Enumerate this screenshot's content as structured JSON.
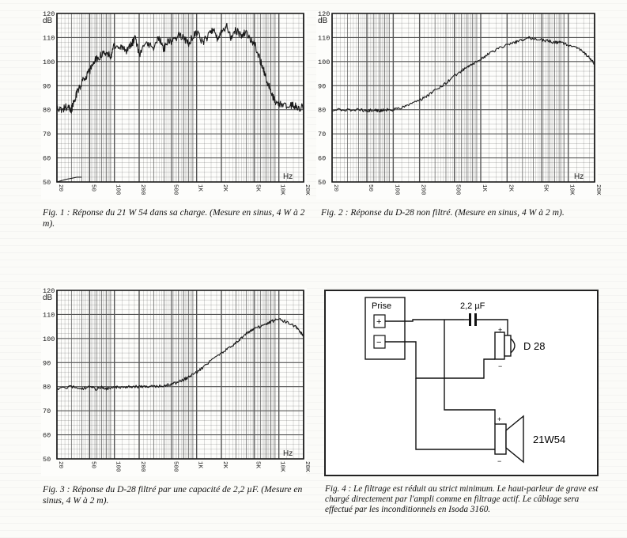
{
  "chart_data": [
    {
      "type": "line",
      "id": "fig1",
      "ylabel": "dB",
      "xlabel": "Hz",
      "xscale": "log",
      "xlim": [
        20,
        20000
      ],
      "ylim": [
        50,
        120
      ],
      "yticks": [
        50,
        60,
        70,
        80,
        90,
        100,
        110,
        120
      ],
      "xtick_labels": [
        {
          "v": 20,
          "t": "20"
        },
        {
          "v": 50,
          "t": "50"
        },
        {
          "v": 100,
          "t": "100"
        },
        {
          "v": 200,
          "t": "200"
        },
        {
          "v": 500,
          "t": "500"
        },
        {
          "v": 1000,
          "t": "1K"
        },
        {
          "v": 2000,
          "t": "2K"
        },
        {
          "v": 5000,
          "t": "5K"
        },
        {
          "v": 10000,
          "t": "10K"
        },
        {
          "v": 20000,
          "t": "20K"
        }
      ],
      "grid": true,
      "series": [
        {
          "x": [
            20,
            23,
            26,
            30,
            32,
            35,
            40,
            45,
            50,
            55,
            60,
            70,
            80,
            90,
            100,
            120,
            140,
            160,
            180,
            200,
            250,
            300,
            350,
            400,
            450,
            500,
            600,
            700,
            800,
            900,
            1000,
            1200,
            1400,
            1600,
            1800,
            2000,
            2300,
            2600,
            3000,
            3500,
            4000,
            4500,
            5000,
            5600,
            6300,
            7000,
            8000,
            9000,
            10000,
            11000,
            13000,
            15000,
            17000,
            20000
          ],
          "y": [
            81,
            80,
            81,
            80,
            83,
            87,
            91,
            94,
            96,
            99,
            101,
            103,
            104,
            102,
            107,
            106,
            104,
            107,
            110,
            103,
            108,
            106,
            110,
            105,
            109,
            108,
            111,
            110,
            107,
            111,
            112,
            108,
            111,
            114,
            109,
            112,
            115,
            110,
            113,
            111,
            112,
            109,
            108,
            103,
            98,
            93,
            88,
            83,
            82,
            82,
            81,
            82,
            81,
            81
          ]
        },
        {
          "x": [
            20,
            25,
            30,
            35,
            40
          ],
          "y": [
            50,
            51,
            51.5,
            52,
            52
          ]
        }
      ]
    },
    {
      "type": "line",
      "id": "fig2",
      "ylabel": "dB",
      "xlabel": "Hz",
      "xscale": "log",
      "xlim": [
        20,
        20000
      ],
      "ylim": [
        50,
        120
      ],
      "yticks": [
        50,
        60,
        70,
        80,
        90,
        100,
        110,
        120
      ],
      "xtick_labels": [
        {
          "v": 20,
          "t": "20"
        },
        {
          "v": 50,
          "t": "50"
        },
        {
          "v": 100,
          "t": "100"
        },
        {
          "v": 200,
          "t": "200"
        },
        {
          "v": 500,
          "t": "500"
        },
        {
          "v": 1000,
          "t": "1K"
        },
        {
          "v": 2000,
          "t": "2K"
        },
        {
          "v": 5000,
          "t": "5K"
        },
        {
          "v": 10000,
          "t": "10K"
        },
        {
          "v": 20000,
          "t": "20K"
        }
      ],
      "grid": true,
      "series": [
        {
          "x": [
            20,
            30,
            40,
            50,
            60,
            70,
            80,
            100,
            120,
            150,
            200,
            250,
            300,
            400,
            500,
            600,
            700,
            800,
            1000,
            1200,
            1500,
            2000,
            2500,
            3000,
            3500,
            4000,
            5000,
            6000,
            7000,
            8000,
            10000,
            12000,
            14000,
            16000,
            18000,
            20000
          ],
          "y": [
            80,
            80,
            80,
            79.5,
            80,
            79.5,
            80,
            80,
            80.5,
            82,
            84,
            86,
            88,
            91,
            94,
            96,
            98,
            99,
            101,
            103,
            105,
            107,
            108,
            109,
            110,
            109.5,
            109,
            108.5,
            108,
            108,
            107,
            106,
            105,
            103,
            101,
            99
          ]
        }
      ]
    },
    {
      "type": "line",
      "id": "fig3",
      "ylabel": "dB",
      "xlabel": "Hz",
      "xscale": "log",
      "xlim": [
        20,
        20000
      ],
      "ylim": [
        50,
        120
      ],
      "yticks": [
        50,
        60,
        70,
        80,
        90,
        100,
        110,
        120
      ],
      "xtick_labels": [
        {
          "v": 20,
          "t": "20"
        },
        {
          "v": 50,
          "t": "50"
        },
        {
          "v": 100,
          "t": "100"
        },
        {
          "v": 200,
          "t": "200"
        },
        {
          "v": 500,
          "t": "500"
        },
        {
          "v": 1000,
          "t": "1K"
        },
        {
          "v": 2000,
          "t": "2K"
        },
        {
          "v": 5000,
          "t": "5K"
        },
        {
          "v": 10000,
          "t": "10K"
        },
        {
          "v": 20000,
          "t": "20K"
        }
      ],
      "grid": true,
      "series": [
        {
          "x": [
            20,
            30,
            40,
            50,
            60,
            70,
            80,
            100,
            120,
            150,
            200,
            250,
            300,
            400,
            500,
            600,
            700,
            800,
            1000,
            1200,
            1500,
            2000,
            2500,
            3000,
            3500,
            4000,
            4500,
            5000,
            6000,
            7000,
            8000,
            10000,
            12000,
            14000,
            16000,
            18000,
            20000
          ],
          "y": [
            79,
            80,
            79,
            80,
            79,
            80,
            79,
            80,
            79.5,
            80,
            80,
            80,
            80,
            80.5,
            81,
            82,
            83,
            84,
            86,
            88,
            91,
            94,
            96,
            98,
            100,
            102,
            103,
            104,
            105,
            106,
            107,
            108,
            107,
            106,
            105,
            103,
            101
          ]
        }
      ]
    }
  ],
  "captions": {
    "fig1": "Fig. 1 : Réponse du 21 W 54 dans sa charge. (Mesure en sinus, 4 W à 2 m).",
    "fig2": "Fig. 2 : Réponse du D-28 non filtré. (Mesure en sinus, 4 W à 2 m).",
    "fig3": "Fig. 3 : Réponse du D-28 filtré par une capacité de 2,2 µF. (Mesure en sinus, 4 W à 2 m).",
    "fig4": "Fig. 4 : Le filtrage est réduit au strict minimum. Le haut-parleur de grave est chargé directement par l'ampli comme en filtrage actif. Le câblage sera effectué par les inconditionnels en Isoda 3160."
  },
  "schematic": {
    "prise_label": "Prise",
    "plus": "+",
    "minus": "−",
    "capacitor_label": "2,2 µF",
    "tweeter_label": "D 28",
    "woofer_label": "21W54"
  },
  "colors": {
    "ink": "#1a1a1a",
    "grid": "#555555",
    "paper": "#fbfbf8"
  }
}
